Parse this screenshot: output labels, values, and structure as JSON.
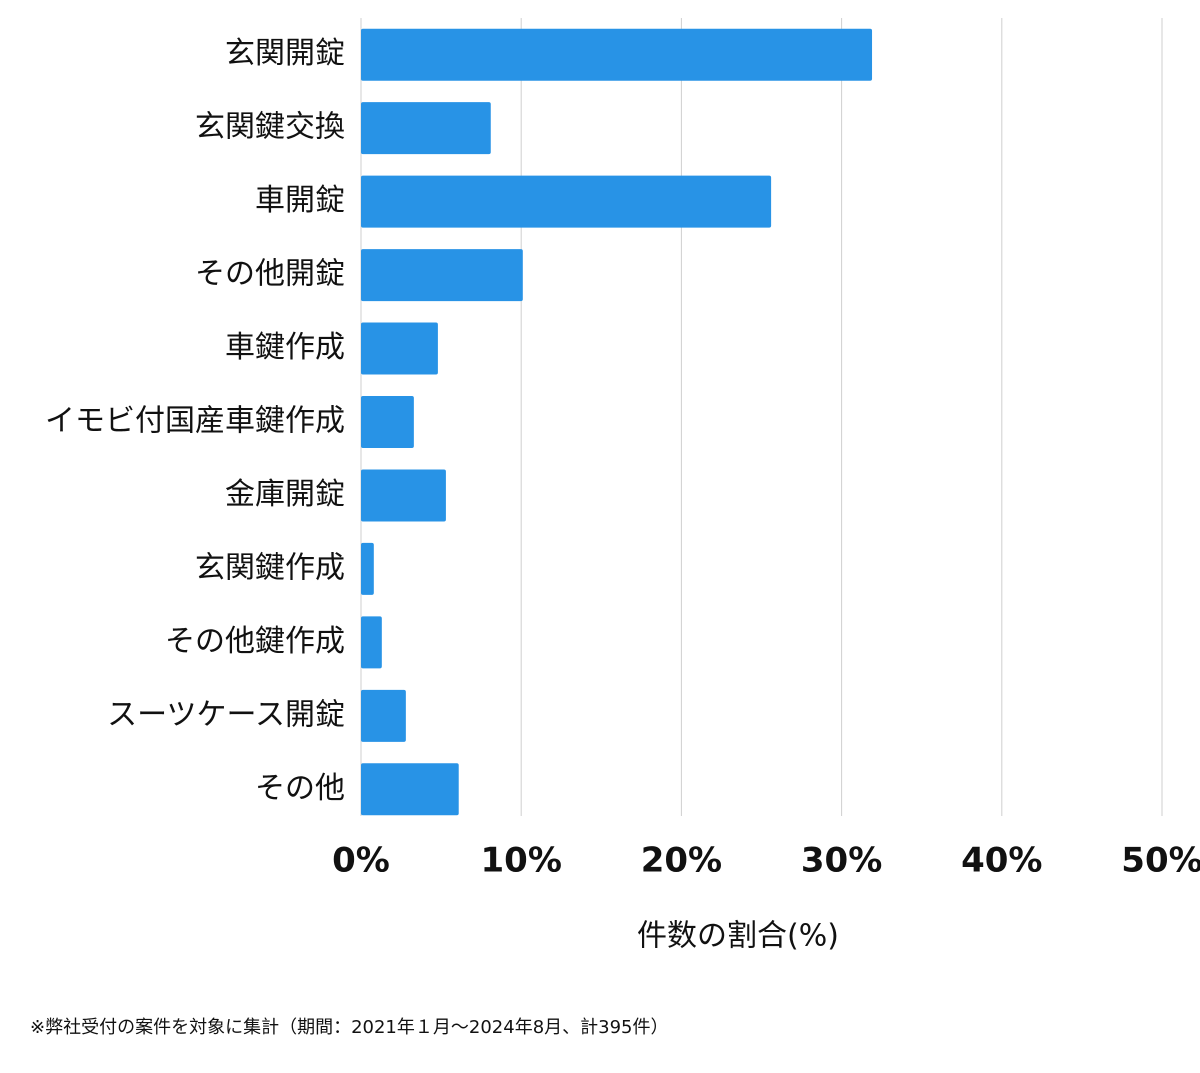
{
  "chart_data": {
    "type": "barh",
    "categories": [
      "玄関開錠",
      "玄関鍵交換",
      "車開錠",
      "その他開錠",
      "車鍵作成",
      "イモビ付国産車鍵作成",
      "金庫開錠",
      "玄関鍵作成",
      "その他鍵作成",
      "スーツケース開錠",
      "その他"
    ],
    "values": [
      31.9,
      8.1,
      25.6,
      10.1,
      4.8,
      3.3,
      5.3,
      0.8,
      1.3,
      2.8,
      6.1
    ],
    "color": "#2893e6",
    "xlim": [
      0,
      50
    ],
    "xticks": [
      {
        "value": 0,
        "label": "0%"
      },
      {
        "value": 10,
        "label": "10%"
      },
      {
        "value": 20,
        "label": "20%"
      },
      {
        "value": 30,
        "label": "30%"
      },
      {
        "value": 40,
        "label": "40%"
      },
      {
        "value": 50,
        "label": "50%"
      }
    ],
    "xlabel": "件数の割合(%)",
    "grid": true,
    "footnote": "※弊社受付の案件を対象に集計（期間：2021年１月〜2024年8月、計395件）"
  }
}
